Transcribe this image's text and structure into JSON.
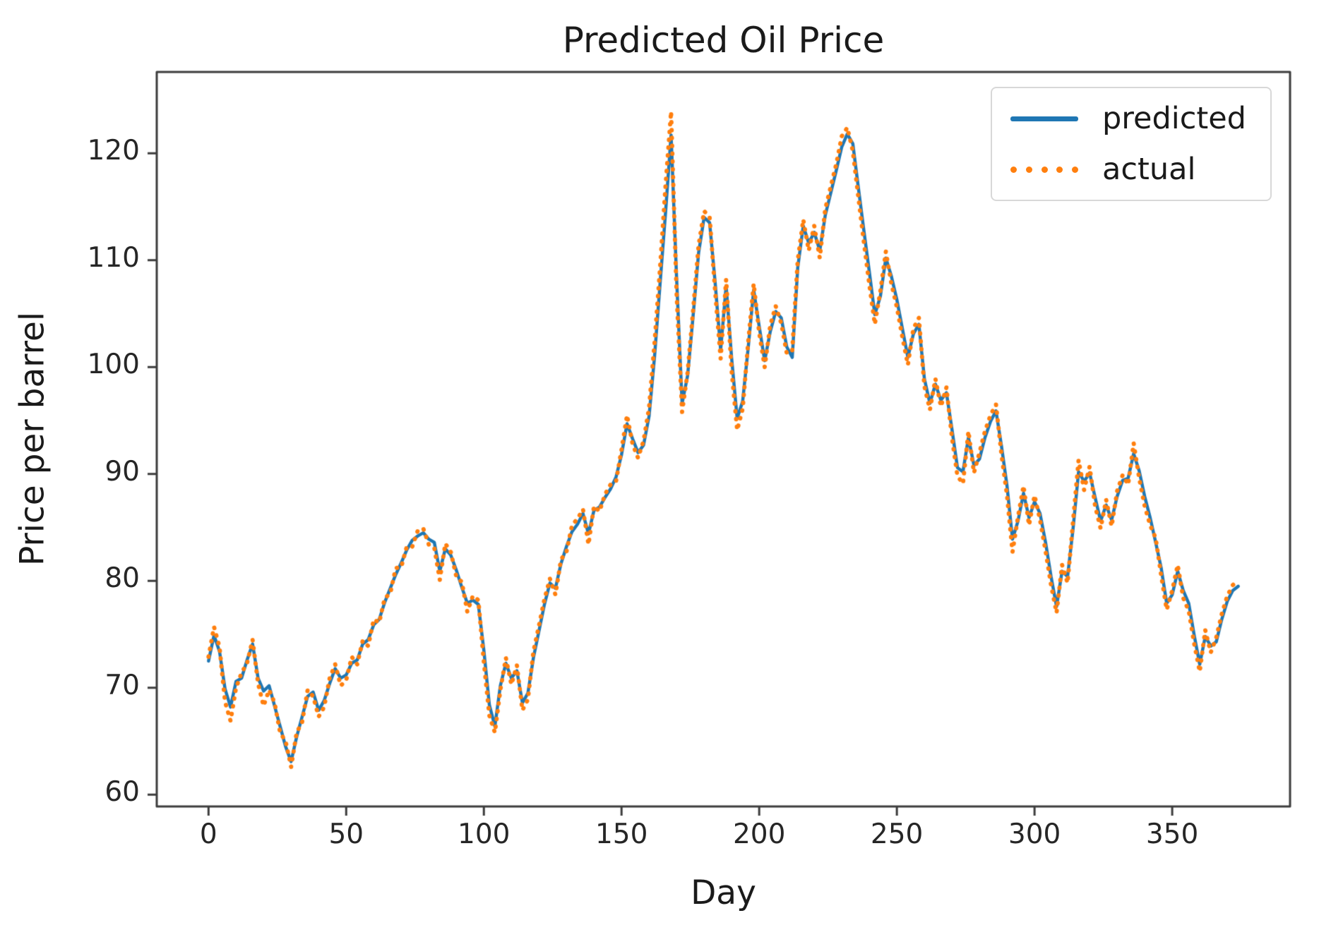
{
  "chart_data": {
    "type": "line",
    "title": "Predicted Oil Price",
    "xlabel": "Day",
    "ylabel": "Price per barrel",
    "x_ticks": [
      0,
      50,
      100,
      150,
      200,
      250,
      300,
      350
    ],
    "y_ticks": [
      60,
      70,
      80,
      90,
      100,
      110,
      120
    ],
    "xlim": [
      -18.8,
      392.8
    ],
    "ylim": [
      58.9,
      127.6
    ],
    "grid": false,
    "legend_position": "upper right",
    "legend": [
      {
        "label": "predicted",
        "style": "solid",
        "color": "#1f77b4"
      },
      {
        "label": "actual",
        "style": "dotted",
        "color": "#ff7f0e"
      }
    ],
    "x": [
      0,
      2,
      4,
      6,
      8,
      10,
      12,
      14,
      16,
      18,
      20,
      22,
      24,
      26,
      28,
      30,
      32,
      34,
      36,
      38,
      40,
      42,
      44,
      46,
      48,
      50,
      52,
      54,
      56,
      58,
      60,
      62,
      64,
      66,
      68,
      70,
      72,
      74,
      76,
      78,
      80,
      82,
      84,
      86,
      88,
      90,
      92,
      94,
      96,
      98,
      100,
      102,
      104,
      106,
      108,
      110,
      112,
      114,
      116,
      118,
      120,
      122,
      124,
      126,
      128,
      130,
      132,
      134,
      136,
      138,
      140,
      142,
      144,
      146,
      148,
      150,
      152,
      154,
      156,
      158,
      160,
      162,
      164,
      166,
      168,
      170,
      172,
      174,
      176,
      178,
      180,
      182,
      184,
      186,
      188,
      190,
      192,
      194,
      196,
      198,
      200,
      202,
      204,
      206,
      208,
      210,
      212,
      214,
      216,
      218,
      220,
      222,
      224,
      226,
      228,
      230,
      232,
      234,
      236,
      238,
      240,
      242,
      244,
      246,
      248,
      250,
      252,
      254,
      256,
      258,
      260,
      262,
      264,
      266,
      268,
      270,
      272,
      274,
      276,
      278,
      280,
      282,
      284,
      286,
      288,
      290,
      292,
      294,
      296,
      298,
      300,
      302,
      304,
      306,
      308,
      310,
      312,
      314,
      316,
      318,
      320,
      322,
      324,
      326,
      328,
      330,
      332,
      334,
      336,
      338,
      340,
      342,
      344,
      346,
      348,
      350,
      352,
      354,
      356,
      358,
      360,
      362,
      364,
      366,
      368,
      370,
      372,
      374
    ],
    "series": [
      {
        "name": "predicted",
        "values": [
          72.5,
          74.9,
          73.4,
          69.9,
          68.2,
          70.6,
          70.9,
          72.6,
          74.1,
          70.9,
          69.7,
          70.2,
          68.3,
          66.4,
          64.5,
          63.1,
          65.4,
          67.3,
          69.2,
          69.6,
          67.9,
          68.8,
          70.4,
          71.8,
          70.9,
          71.2,
          72.3,
          72.6,
          74.1,
          74.5,
          75.9,
          76.4,
          78.0,
          79.3,
          80.6,
          81.7,
          82.9,
          83.8,
          84.2,
          84.5,
          83.9,
          83.6,
          80.9,
          83.0,
          82.4,
          81.0,
          79.4,
          77.9,
          78.2,
          77.8,
          73.5,
          68.4,
          66.4,
          70.2,
          72.3,
          70.9,
          71.6,
          68.6,
          69.5,
          72.8,
          75.3,
          77.8,
          79.8,
          79.3,
          81.6,
          83.2,
          84.6,
          85.3,
          86.3,
          84.4,
          86.6,
          86.9,
          87.8,
          88.6,
          89.7,
          91.8,
          94.7,
          93.3,
          92.0,
          92.7,
          95.4,
          101.0,
          107.8,
          114.5,
          121.7,
          108.3,
          96.6,
          99.2,
          104.8,
          110.7,
          114.0,
          113.5,
          107.9,
          101.6,
          107.6,
          100.8,
          95.2,
          96.8,
          101.8,
          107.2,
          103.8,
          100.6,
          103.3,
          105.2,
          104.6,
          101.9,
          100.9,
          109.3,
          113.2,
          111.6,
          112.6,
          110.9,
          114.2,
          116.3,
          118.4,
          120.6,
          121.8,
          120.9,
          116.8,
          112.8,
          108.9,
          104.9,
          106.6,
          110.2,
          108.5,
          106.3,
          103.6,
          100.9,
          103.1,
          104.0,
          98.9,
          96.6,
          98.4,
          96.9,
          97.6,
          94.2,
          90.6,
          90.2,
          93.4,
          90.8,
          91.4,
          93.4,
          94.9,
          95.9,
          92.6,
          88.9,
          83.9,
          85.6,
          88.2,
          85.9,
          87.4,
          86.3,
          83.6,
          80.4,
          77.6,
          80.9,
          80.4,
          84.9,
          90.2,
          89.3,
          90.1,
          87.8,
          85.6,
          87.1,
          85.7,
          87.9,
          89.4,
          89.6,
          91.9,
          90.3,
          87.9,
          85.9,
          83.6,
          81.2,
          77.9,
          78.7,
          80.9,
          79.1,
          77.9,
          74.9,
          72.2,
          74.8,
          73.9,
          74.3,
          76.4,
          78.1,
          79.1,
          79.5
        ]
      },
      {
        "name": "actual",
        "values": [
          72.9,
          75.7,
          73.8,
          68.7,
          66.9,
          70.0,
          71.4,
          72.3,
          74.5,
          70.4,
          68.3,
          69.8,
          68.6,
          65.8,
          65.0,
          62.6,
          65.8,
          66.8,
          69.8,
          69.2,
          67.3,
          68.2,
          70.9,
          72.2,
          70.2,
          70.7,
          72.9,
          72.2,
          74.4,
          73.9,
          76.4,
          76.1,
          78.4,
          78.8,
          81.2,
          81.3,
          83.2,
          83.2,
          84.7,
          84.9,
          83.4,
          83.1,
          80.1,
          83.5,
          82.7,
          80.4,
          79.9,
          77.1,
          78.6,
          78.2,
          72.4,
          67.4,
          65.8,
          69.8,
          72.8,
          70.3,
          72.1,
          67.9,
          68.9,
          73.4,
          75.8,
          78.3,
          80.2,
          78.7,
          82.0,
          82.7,
          85.2,
          85.8,
          86.7,
          83.4,
          87.0,
          86.5,
          88.1,
          89.0,
          89.3,
          92.3,
          95.5,
          92.8,
          91.5,
          93.1,
          96.2,
          102.3,
          109.3,
          117.0,
          123.9,
          106.9,
          95.8,
          99.5,
          105.3,
          111.4,
          114.6,
          114.0,
          107.1,
          100.8,
          108.2,
          99.6,
          94.1,
          96.1,
          102.3,
          107.8,
          103.2,
          100.0,
          103.9,
          105.7,
          104.1,
          101.3,
          101.5,
          110.0,
          113.8,
          110.9,
          113.2,
          110.2,
          114.8,
          116.9,
          119.0,
          121.6,
          122.4,
          120.2,
          115.9,
          111.7,
          107.7,
          104.0,
          107.1,
          110.8,
          107.8,
          105.6,
          102.8,
          100.2,
          103.6,
          104.6,
          98.2,
          96.0,
          98.9,
          96.3,
          98.1,
          93.4,
          89.8,
          89.1,
          94.0,
          90.1,
          92.0,
          94.0,
          95.5,
          96.5,
          91.8,
          88.0,
          82.7,
          86.0,
          88.9,
          85.2,
          88.0,
          85.7,
          82.8,
          79.6,
          77.0,
          81.5,
          79.8,
          85.6,
          91.3,
          88.5,
          90.7,
          87.0,
          84.9,
          87.6,
          85.1,
          88.4,
          89.9,
          89.0,
          92.9,
          89.6,
          87.0,
          85.2,
          84.0,
          80.5,
          77.3,
          79.1,
          81.5,
          78.4,
          77.2,
          74.1,
          71.5,
          75.4,
          73.3,
          74.7,
          76.9,
          78.6,
          79.6,
          80.1
        ]
      }
    ],
    "colors": {
      "predicted": "#1f77b4",
      "actual": "#ff7f0e",
      "axis": "#3c3c3c",
      "text": "#1a1a1a"
    }
  }
}
